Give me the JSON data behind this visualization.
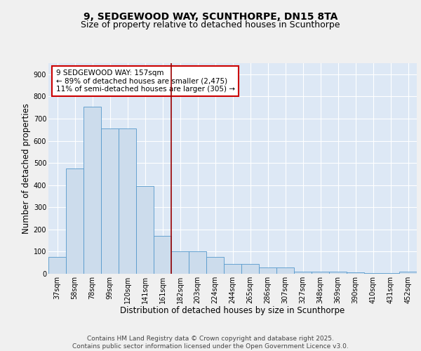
{
  "title1": "9, SEDGEWOOD WAY, SCUNTHORPE, DN15 8TA",
  "title2": "Size of property relative to detached houses in Scunthorpe",
  "xlabel": "Distribution of detached houses by size in Scunthorpe",
  "ylabel": "Number of detached properties",
  "categories": [
    "37sqm",
    "58sqm",
    "78sqm",
    "99sqm",
    "120sqm",
    "141sqm",
    "161sqm",
    "182sqm",
    "203sqm",
    "224sqm",
    "244sqm",
    "265sqm",
    "286sqm",
    "307sqm",
    "327sqm",
    "348sqm",
    "369sqm",
    "390sqm",
    "410sqm",
    "431sqm",
    "452sqm"
  ],
  "values": [
    75,
    475,
    755,
    655,
    655,
    395,
    170,
    100,
    100,
    75,
    45,
    45,
    30,
    30,
    10,
    10,
    8,
    5,
    3,
    2,
    8
  ],
  "bar_color": "#ccdcec",
  "bar_edge_color": "#5599cc",
  "vline_color": "#990000",
  "annotation_line1": "9 SEDGEWOOD WAY: 157sqm",
  "annotation_line2": "← 89% of detached houses are smaller (2,475)",
  "annotation_line3": "11% of semi-detached houses are larger (305) →",
  "annotation_box_facecolor": "#ffffff",
  "annotation_box_edgecolor": "#cc0000",
  "ylim": [
    0,
    950
  ],
  "yticks": [
    0,
    100,
    200,
    300,
    400,
    500,
    600,
    700,
    800,
    900
  ],
  "plot_bg": "#dde8f5",
  "fig_bg": "#f0f0f0",
  "grid_color": "#ffffff",
  "footer": "Contains HM Land Registry data © Crown copyright and database right 2025.\nContains public sector information licensed under the Open Government Licence v3.0.",
  "title1_fontsize": 10,
  "title2_fontsize": 9,
  "xlabel_fontsize": 8.5,
  "ylabel_fontsize": 8.5,
  "tick_fontsize": 7,
  "annot_fontsize": 7.5,
  "footer_fontsize": 6.5
}
